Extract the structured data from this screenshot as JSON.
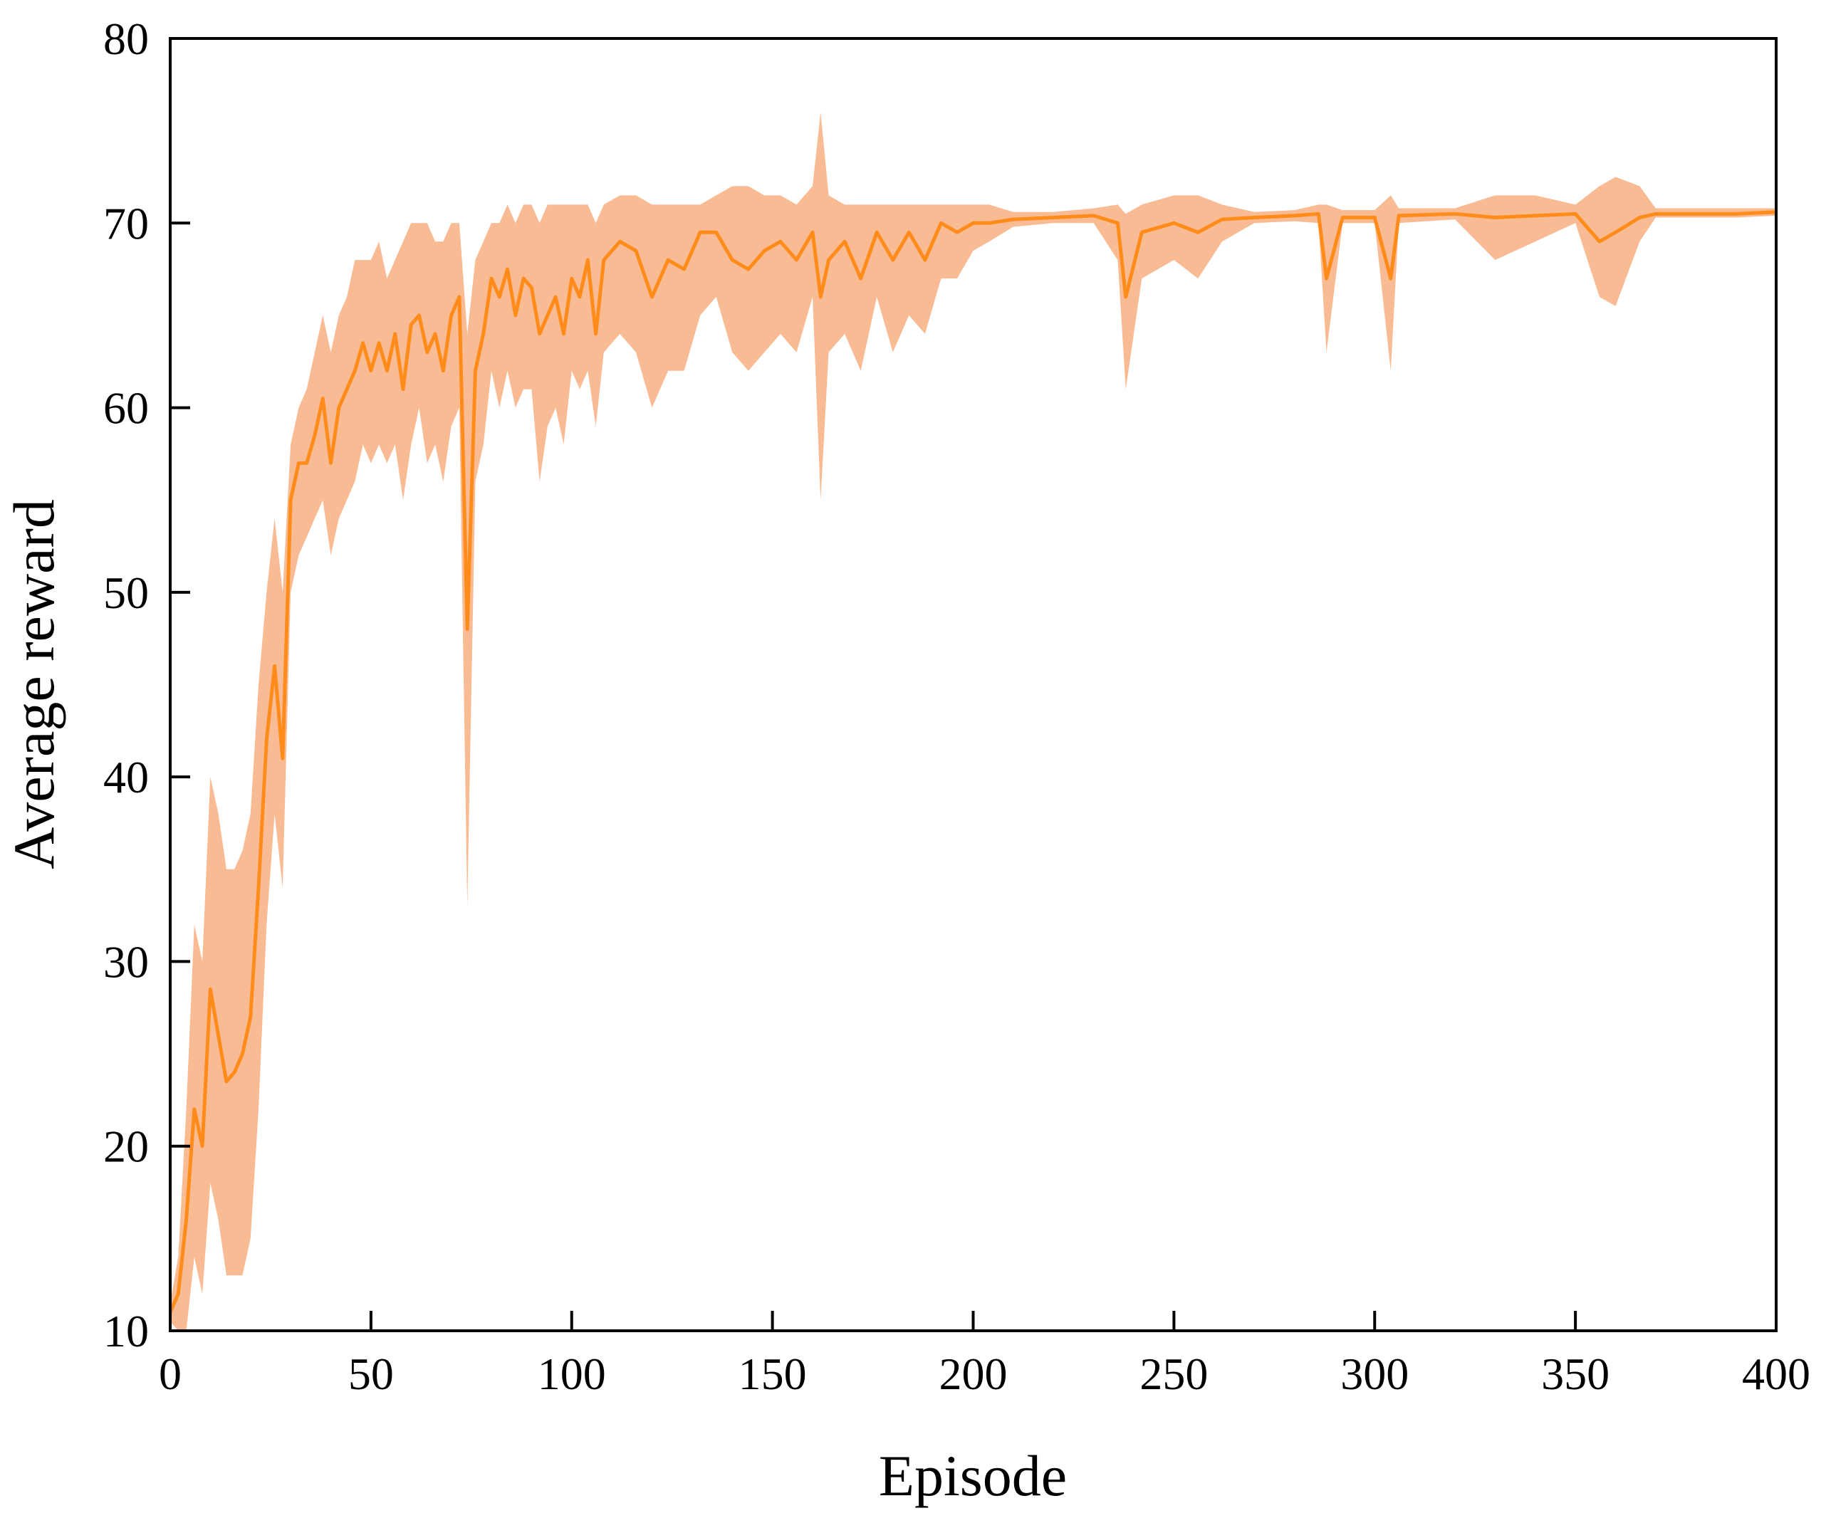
{
  "chart_data": {
    "type": "line",
    "xlabel": "Episode",
    "ylabel": "Average reward",
    "xlim": [
      0,
      400
    ],
    "ylim": [
      10,
      80
    ],
    "xticks": [
      0,
      50,
      100,
      150,
      200,
      250,
      300,
      350,
      400
    ],
    "yticks": [
      10,
      20,
      30,
      40,
      50,
      60,
      70,
      80
    ],
    "x": [
      0,
      2,
      4,
      6,
      8,
      10,
      12,
      14,
      16,
      18,
      20,
      22,
      24,
      26,
      28,
      30,
      32,
      34,
      36,
      38,
      40,
      42,
      44,
      46,
      48,
      50,
      52,
      54,
      56,
      58,
      60,
      62,
      64,
      66,
      68,
      70,
      72,
      74,
      76,
      78,
      80,
      82,
      84,
      86,
      88,
      90,
      92,
      94,
      96,
      98,
      100,
      102,
      104,
      106,
      108,
      112,
      116,
      120,
      124,
      128,
      132,
      136,
      140,
      144,
      148,
      152,
      156,
      160,
      162,
      164,
      168,
      172,
      176,
      180,
      184,
      188,
      192,
      196,
      200,
      204,
      210,
      220,
      230,
      236,
      238,
      242,
      250,
      256,
      262,
      270,
      280,
      286,
      288,
      292,
      300,
      304,
      306,
      320,
      330,
      340,
      350,
      356,
      360,
      366,
      370,
      380,
      390,
      400
    ],
    "series": [
      {
        "color": "#ff8c1a",
        "values": [
          11,
          12,
          16,
          22,
          20,
          28.5,
          26,
          23.5,
          24,
          25,
          27,
          34,
          42,
          46,
          41,
          55,
          57,
          57,
          58.5,
          60.5,
          57,
          60,
          61,
          62,
          63.5,
          62,
          63.5,
          62,
          64,
          61,
          64.5,
          65,
          63,
          64,
          62,
          65,
          66,
          48,
          62,
          64,
          67,
          66,
          67.5,
          65,
          67,
          66.5,
          64,
          65,
          66,
          64,
          67,
          66,
          68,
          64,
          68,
          69,
          68.5,
          66,
          68,
          67.5,
          69.5,
          69.5,
          68,
          67.5,
          68.5,
          69,
          68,
          69.5,
          66,
          68,
          69,
          67,
          69.5,
          68,
          69.5,
          68,
          70,
          69.5,
          70,
          70,
          70.2,
          70.3,
          70.4,
          70,
          66,
          69.5,
          70,
          69.5,
          70.2,
          70.3,
          70.4,
          70.5,
          67,
          70.3,
          70.3,
          67,
          70.4,
          70.5,
          70.3,
          70.4,
          70.5,
          69,
          69.5,
          70.3,
          70.5,
          70.5,
          70.5,
          70.6
        ]
      }
    ],
    "band": {
      "color": "#f9bb93",
      "lower": [
        10.5,
        10,
        10,
        14,
        12,
        18,
        16,
        13,
        13,
        13,
        15,
        22,
        32,
        38,
        34,
        50,
        52,
        53,
        54,
        55,
        52,
        54,
        55,
        56,
        58,
        57,
        58,
        57,
        58,
        55,
        58,
        60,
        57,
        58,
        56,
        59,
        60,
        33,
        56,
        58,
        62,
        60,
        62,
        60,
        61,
        61,
        56,
        59,
        60,
        58,
        62,
        61,
        62,
        59,
        63,
        64,
        63,
        60,
        62,
        62,
        65,
        66,
        63,
        62,
        63,
        64,
        63,
        66,
        55,
        63,
        64,
        62,
        66,
        63,
        65,
        64,
        67,
        67,
        68.5,
        69,
        69.8,
        70,
        70,
        68,
        61,
        67,
        68,
        67,
        69,
        70,
        70.1,
        70,
        63,
        70,
        70,
        62,
        70,
        70.2,
        68,
        69,
        70,
        66,
        65.5,
        69,
        70.3,
        70.3,
        70.3,
        70.4
      ],
      "upper": [
        11.5,
        14,
        22,
        32,
        30,
        40,
        38,
        35,
        35,
        36,
        38,
        45,
        50,
        54,
        50,
        58,
        60,
        61,
        63,
        65,
        63,
        65,
        66,
        68,
        68,
        68,
        69,
        67,
        68,
        69,
        70,
        70,
        70,
        69,
        69,
        70,
        70,
        64,
        68,
        69,
        70,
        70,
        71,
        70,
        71,
        71,
        70,
        71,
        71,
        71,
        71,
        71,
        71,
        70,
        71,
        71.5,
        71.5,
        71,
        71,
        71,
        71,
        71.5,
        72,
        72,
        71.5,
        71.5,
        71,
        72,
        76,
        71.5,
        71,
        71,
        71,
        71,
        71,
        71,
        71,
        71,
        71,
        71,
        70.6,
        70.6,
        70.8,
        71,
        70.5,
        71,
        71.5,
        71.5,
        71,
        70.6,
        70.7,
        71,
        71,
        70.7,
        70.7,
        71.5,
        70.8,
        70.8,
        71.5,
        71.5,
        71,
        72,
        72.5,
        72,
        70.8,
        70.8,
        70.8,
        70.8
      ]
    }
  }
}
